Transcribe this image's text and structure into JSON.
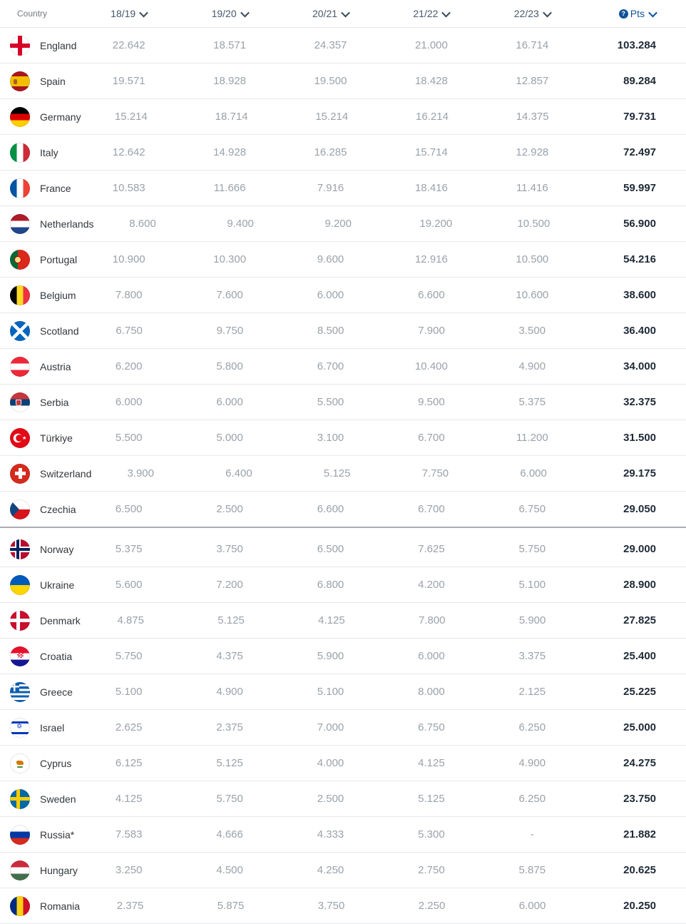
{
  "header": {
    "country_label": "Country",
    "seasons": [
      "18/19",
      "19/20",
      "20/21",
      "21/22",
      "22/23"
    ],
    "pts_label": "Pts"
  },
  "icons": {
    "info_glyph": "?",
    "sort_icon": "chevron-down"
  },
  "colors": {
    "accent_blue": "#0f5499",
    "header_text": "#46586b",
    "value_gray": "#9aa2aa",
    "country_text": "#32373c",
    "pts_text": "#1e2a36",
    "divider": "#e6e8ea",
    "cutoff_divider": "#a9adb2"
  },
  "divider_after_rank": 14,
  "rows": [
    {
      "country": "England",
      "flag": "england",
      "values": [
        "22.642",
        "18.571",
        "24.357",
        "21.000",
        "16.714"
      ],
      "pts": "103.284"
    },
    {
      "country": "Spain",
      "flag": "spain",
      "values": [
        "19.571",
        "18.928",
        "19.500",
        "18.428",
        "12.857"
      ],
      "pts": "89.284"
    },
    {
      "country": "Germany",
      "flag": "germany",
      "values": [
        "15.214",
        "18.714",
        "15.214",
        "16.214",
        "14.375"
      ],
      "pts": "79.731"
    },
    {
      "country": "Italy",
      "flag": "italy",
      "values": [
        "12.642",
        "14.928",
        "16.285",
        "15.714",
        "12.928"
      ],
      "pts": "72.497"
    },
    {
      "country": "France",
      "flag": "france",
      "values": [
        "10.583",
        "11.666",
        "7.916",
        "18.416",
        "11.416"
      ],
      "pts": "59.997"
    },
    {
      "country": "Netherlands",
      "flag": "netherlands",
      "values": [
        "8.600",
        "9.400",
        "9.200",
        "19.200",
        "10.500"
      ],
      "pts": "56.900"
    },
    {
      "country": "Portugal",
      "flag": "portugal",
      "values": [
        "10.900",
        "10.300",
        "9.600",
        "12.916",
        "10.500"
      ],
      "pts": "54.216"
    },
    {
      "country": "Belgium",
      "flag": "belgium",
      "values": [
        "7.800",
        "7.600",
        "6.000",
        "6.600",
        "10.600"
      ],
      "pts": "38.600"
    },
    {
      "country": "Scotland",
      "flag": "scotland",
      "values": [
        "6.750",
        "9.750",
        "8.500",
        "7.900",
        "3.500"
      ],
      "pts": "36.400"
    },
    {
      "country": "Austria",
      "flag": "austria",
      "values": [
        "6.200",
        "5.800",
        "6.700",
        "10.400",
        "4.900"
      ],
      "pts": "34.000"
    },
    {
      "country": "Serbia",
      "flag": "serbia",
      "values": [
        "6.000",
        "6.000",
        "5.500",
        "9.500",
        "5.375"
      ],
      "pts": "32.375"
    },
    {
      "country": "Türkiye",
      "flag": "turkiye",
      "values": [
        "5.500",
        "5.000",
        "3.100",
        "6.700",
        "11.200"
      ],
      "pts": "31.500"
    },
    {
      "country": "Switzerland",
      "flag": "switzerland",
      "values": [
        "3.900",
        "6.400",
        "5.125",
        "7.750",
        "6.000"
      ],
      "pts": "29.175"
    },
    {
      "country": "Czechia",
      "flag": "czechia",
      "values": [
        "6.500",
        "2.500",
        "6.600",
        "6.700",
        "6.750"
      ],
      "pts": "29.050"
    },
    {
      "country": "Norway",
      "flag": "norway",
      "values": [
        "5.375",
        "3.750",
        "6.500",
        "7.625",
        "5.750"
      ],
      "pts": "29.000"
    },
    {
      "country": "Ukraine",
      "flag": "ukraine",
      "values": [
        "5.600",
        "7.200",
        "6.800",
        "4.200",
        "5.100"
      ],
      "pts": "28.900"
    },
    {
      "country": "Denmark",
      "flag": "denmark",
      "values": [
        "4.875",
        "5.125",
        "4.125",
        "7.800",
        "5.900"
      ],
      "pts": "27.825"
    },
    {
      "country": "Croatia",
      "flag": "croatia",
      "values": [
        "5.750",
        "4.375",
        "5.900",
        "6.000",
        "3.375"
      ],
      "pts": "25.400"
    },
    {
      "country": "Greece",
      "flag": "greece",
      "values": [
        "5.100",
        "4.900",
        "5.100",
        "8.000",
        "2.125"
      ],
      "pts": "25.225"
    },
    {
      "country": "Israel",
      "flag": "israel",
      "values": [
        "2.625",
        "2.375",
        "7.000",
        "6.750",
        "6.250"
      ],
      "pts": "25.000"
    },
    {
      "country": "Cyprus",
      "flag": "cyprus",
      "values": [
        "6.125",
        "5.125",
        "4.000",
        "4.125",
        "4.900"
      ],
      "pts": "24.275"
    },
    {
      "country": "Sweden",
      "flag": "sweden",
      "values": [
        "4.125",
        "5.750",
        "2.500",
        "5.125",
        "6.250"
      ],
      "pts": "23.750"
    },
    {
      "country": "Russia*",
      "flag": "russia",
      "values": [
        "7.583",
        "4.666",
        "4.333",
        "5.300",
        "-"
      ],
      "pts": "21.882"
    },
    {
      "country": "Hungary",
      "flag": "hungary",
      "values": [
        "3.250",
        "4.500",
        "4.250",
        "2.750",
        "5.875"
      ],
      "pts": "20.625"
    },
    {
      "country": "Romania",
      "flag": "romania",
      "values": [
        "2.375",
        "5.875",
        "3.750",
        "2.250",
        "6.000"
      ],
      "pts": "20.250"
    }
  ]
}
